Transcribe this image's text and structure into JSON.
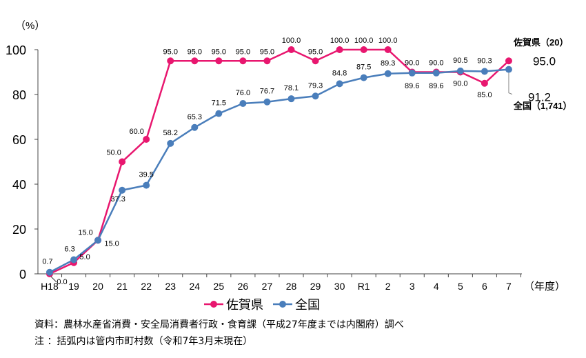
{
  "chart_data": {
    "type": "line",
    "ylabel": "（%）",
    "xlabel": "（年度）",
    "ylim": [
      0,
      100
    ],
    "yticks": [
      "0",
      "20",
      "40",
      "60",
      "80",
      "100"
    ],
    "categories": [
      "H18",
      "19",
      "20",
      "21",
      "22",
      "23",
      "24",
      "25",
      "26",
      "27",
      "28",
      "29",
      "30",
      "R1",
      "2",
      "3",
      "4",
      "5",
      "6",
      "7"
    ],
    "series": [
      {
        "name": "佐賀県",
        "end_label": "佐賀県（20）",
        "color": "#e8176f",
        "values": [
          0.0,
          5.0,
          15.0,
          50.0,
          60.0,
          95.0,
          95.0,
          95.0,
          95.0,
          95.0,
          100.0,
          95.0,
          100.0,
          100.0,
          100.0,
          90.0,
          90.0,
          90.0,
          85.0,
          95.0
        ],
        "labels": [
          "0.0",
          "5.0",
          "15.0",
          "50.0",
          "60.0",
          "95.0",
          "95.0",
          "95.0",
          "95.0",
          "95.0",
          "100.0",
          "95.0",
          "100.0",
          "100.0",
          "100.0",
          "90.0",
          "90.0",
          "90.0",
          "85.0",
          "95.0"
        ]
      },
      {
        "name": "全国",
        "end_label": "全国（1,741）",
        "color": "#4a7ebb",
        "values": [
          0.7,
          6.3,
          15.0,
          37.3,
          39.5,
          58.2,
          65.3,
          71.5,
          76.0,
          76.7,
          78.1,
          79.3,
          84.8,
          87.5,
          89.3,
          89.6,
          89.6,
          90.5,
          90.3,
          91.2
        ],
        "labels": [
          "0.7",
          "6.3",
          "15.0",
          "37.3",
          "39.5",
          "58.2",
          "65.3",
          "71.5",
          "76.0",
          "76.7",
          "78.1",
          "79.3",
          "84.8",
          "87.5",
          "89.3",
          "89.6",
          "89.6",
          "90.5",
          "90.3",
          "91.2"
        ]
      }
    ],
    "legend": "bottom"
  },
  "notes": {
    "source": "資料：農林水産省消費・安全局消費者行政・食育課（平成27年度までは内閣府）調べ",
    "note": " 注 ：括弧内は管内市町村数（令和7年3月末現在）"
  }
}
